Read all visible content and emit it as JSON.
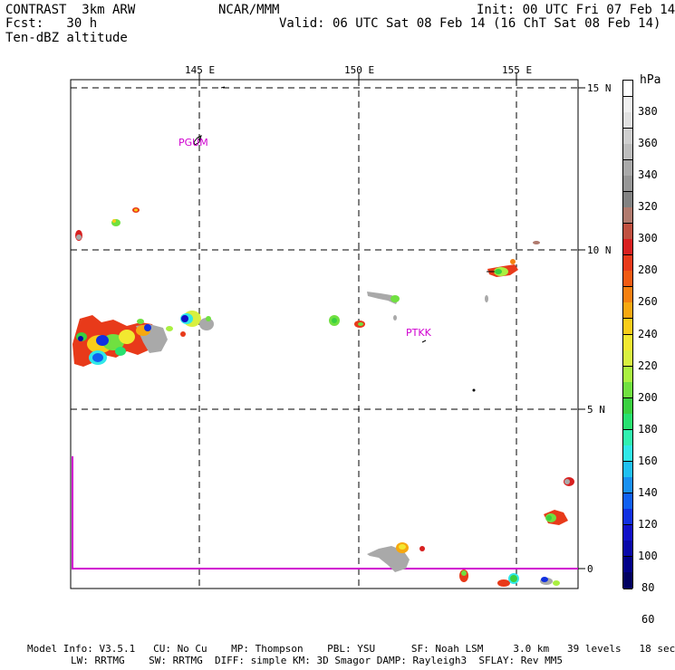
{
  "header": {
    "left_line1": "CONTRAST  3km ARW",
    "left_line2": "Fcst:   30 h",
    "left_line3": "Ten-dBZ altitude",
    "center": "NCAR/MMM",
    "right_line1": "Init: 00 UTC Fri 07 Feb 14",
    "right_line2": "Valid: 06 UTC Sat 08 Feb 14 (16 ChT Sat 08 Feb 14)"
  },
  "map": {
    "lon_labels": [
      "145 E",
      "150 E",
      "155 E"
    ],
    "lat_labels": [
      "15 N",
      "10 N",
      "5 N",
      "0"
    ],
    "stations": [
      "PGUM",
      "PTKK"
    ]
  },
  "colorbar": {
    "unit": "hPa",
    "tick_labels": [
      "380",
      "360",
      "340",
      "320",
      "300",
      "280",
      "260",
      "240",
      "220",
      "200",
      "180",
      "160",
      "140",
      "120",
      "100",
      "80",
      "60"
    ],
    "colors": [
      "#ffffff",
      "#f0f0f0",
      "#e1e1e1",
      "#cfcfcf",
      "#bdbdbd",
      "#a9a9a9",
      "#969696",
      "#828282",
      "#b07a6e",
      "#c05040",
      "#d82020",
      "#e83a1a",
      "#f05a12",
      "#f58010",
      "#f7a810",
      "#f8cc18",
      "#f2e830",
      "#d8f040",
      "#aaf040",
      "#70e040",
      "#3ad040",
      "#28e070",
      "#30f0b0",
      "#30e8e8",
      "#20c0f0",
      "#1890f0",
      "#1060f0",
      "#1030e0",
      "#1010c8",
      "#0808a8",
      "#000088",
      "#000060"
    ]
  },
  "footer": {
    "line1": "Model Info: V3.5.1   CU: No Cu    MP: Thompson    PBL: YSU      SF: Noah LSM     3.0 km   39 levels   18 sec",
    "line2": "LW: RRTMG    SW: RRTMG  DIFF: simple KM: 3D Smagor DAMP: Rayleigh3  SFLAY: Rev MM5"
  }
}
